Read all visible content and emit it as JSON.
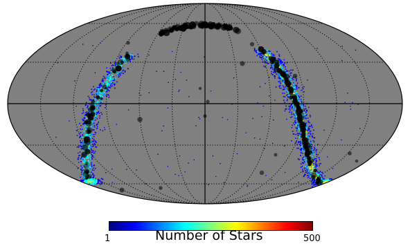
{
  "map": {
    "projection": "Mollweide",
    "background_color": "#808080",
    "graticule_style": "dotted",
    "star_marker_color": "#000000",
    "density_colormap": [
      "#00007f",
      "#0000ff",
      "#007fff",
      "#00ffff",
      "#7fff7f",
      "#ffff00",
      "#ff7f00",
      "#ff0000",
      "#7f0000"
    ]
  },
  "colorbar": {
    "label": "Number of Stars",
    "min_label": "1",
    "max_label": "500",
    "range": [
      1,
      500
    ]
  }
}
